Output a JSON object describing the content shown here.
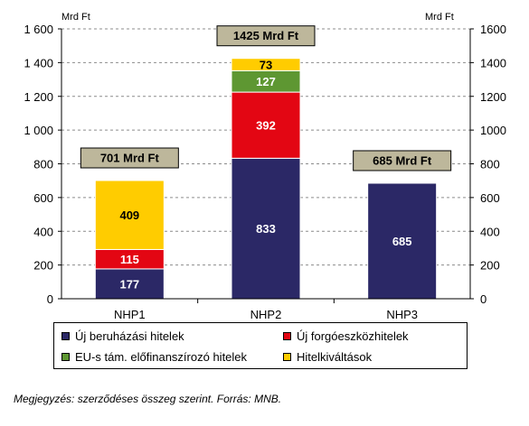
{
  "chart_data": {
    "type": "bar",
    "stacked": true,
    "categories": [
      "NHP1",
      "NHP2",
      "NHP3"
    ],
    "series": [
      {
        "name": "Új beruházási hitelek",
        "values": [
          177,
          833,
          685
        ],
        "color": "#2B2866",
        "label_color": "#ffffff"
      },
      {
        "name": "Új forgóeszközhitelek",
        "values": [
          115,
          392,
          0
        ],
        "color": "#E30613",
        "label_color": "#ffffff"
      },
      {
        "name": "EU-s tám. előfinanszírozó hitelek",
        "values": [
          0,
          127,
          0
        ],
        "color": "#5E9732",
        "label_color": "#ffffff"
      },
      {
        "name": "Hitelkiváltások",
        "values": [
          409,
          73,
          0
        ],
        "color": "#FFCC00",
        "label_color": "#000000"
      }
    ],
    "totals": [
      "701 Mrd Ft",
      "1425 Mrd Ft",
      "685 Mrd Ft"
    ],
    "total_box_color": "#BDB79B",
    "ylim": [
      0,
      1600
    ],
    "y_ticks_left": [
      "0",
      "200",
      "400",
      "600",
      "800",
      "1 000",
      "1 200",
      "1 400",
      "1 600"
    ],
    "y_ticks_right": [
      "0",
      "200",
      "400",
      "600",
      "800",
      "1000",
      "1200",
      "1400",
      "1600"
    ],
    "y_tick_values": [
      0,
      200,
      400,
      600,
      800,
      1000,
      1200,
      1400,
      1600
    ],
    "ylabel_left": "Mrd Ft",
    "ylabel_right": "Mrd Ft",
    "grid": true,
    "legend_position": "bottom"
  },
  "note": "Megjegyzés: szerződéses összeg szerint. Forrás: MNB."
}
